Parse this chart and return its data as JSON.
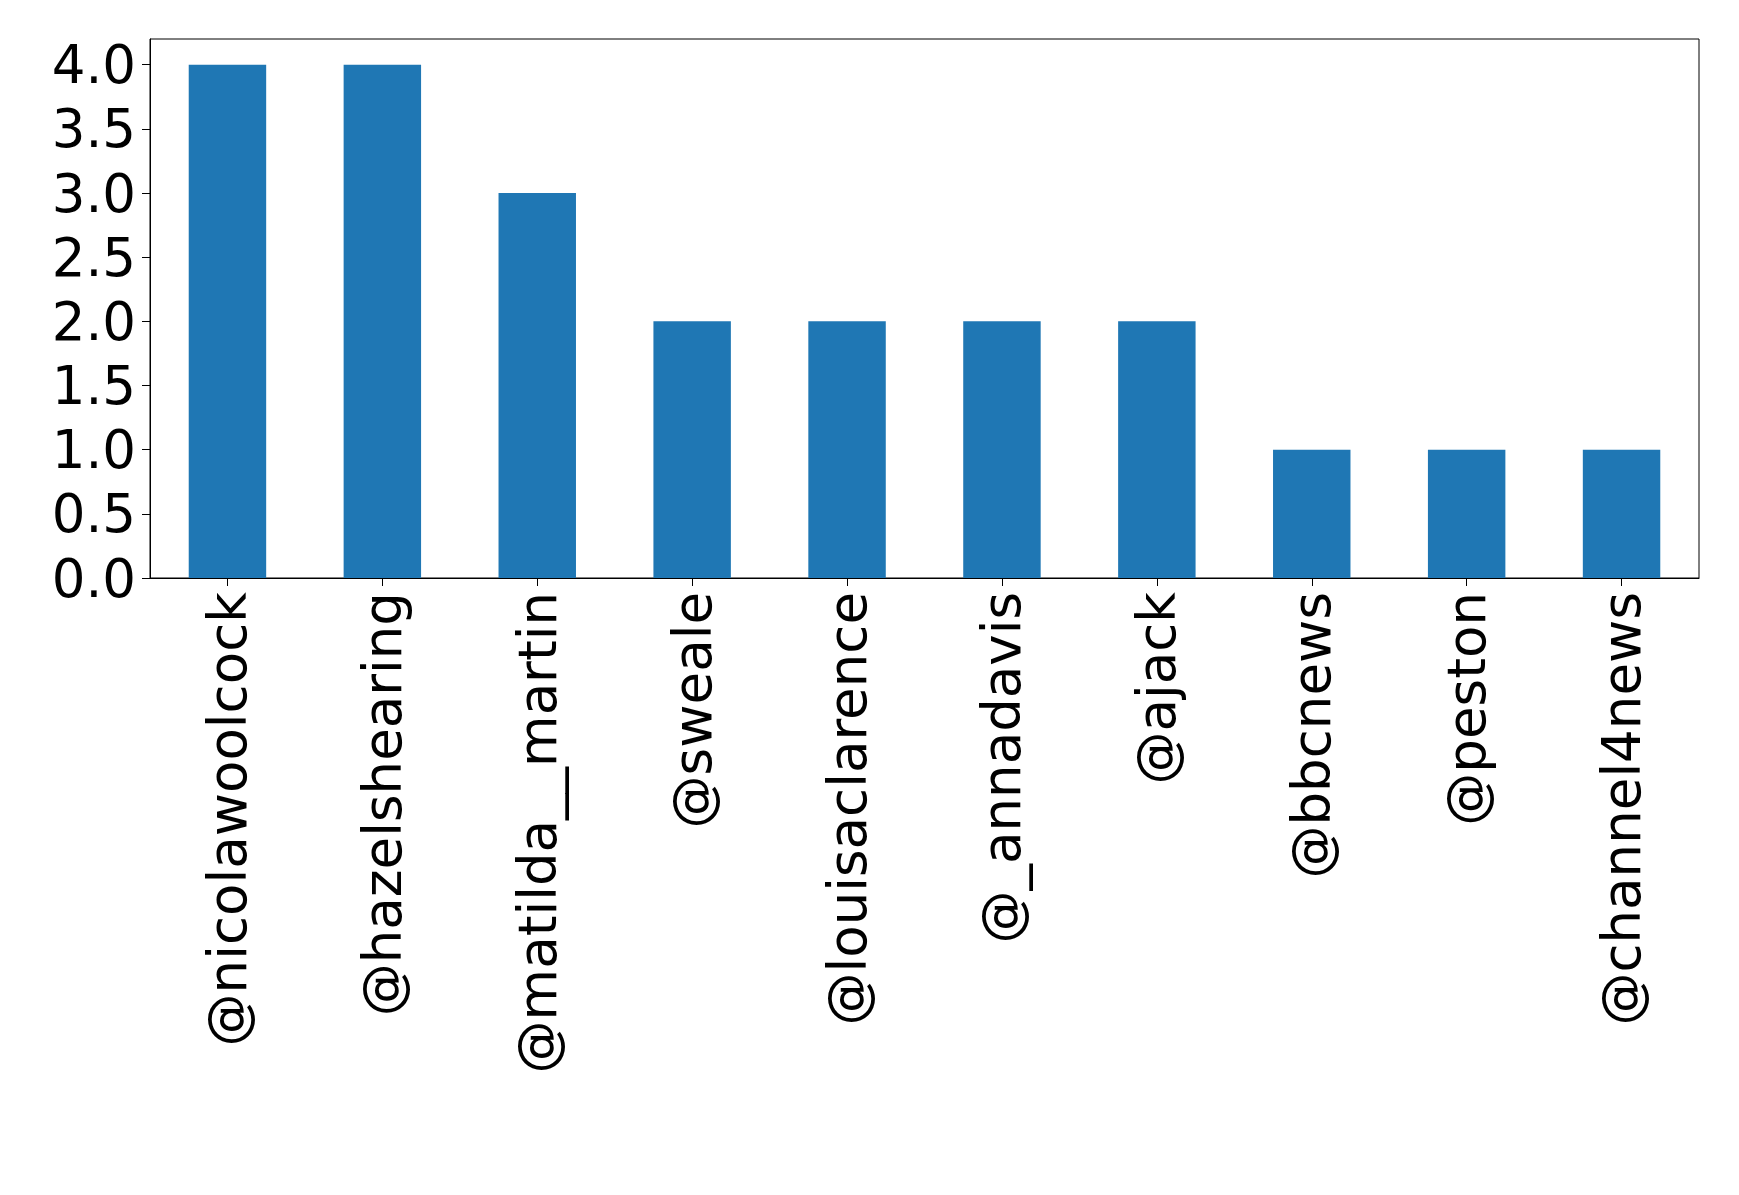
{
  "chart_data": {
    "type": "bar",
    "categories": [
      "@nicolawoolcock",
      "@hazelshearing",
      "@matilda__martin",
      "@sweale",
      "@louisaclarence",
      "@_annadavis",
      "@ajack",
      "@bbcnews",
      "@peston",
      "@channel4news"
    ],
    "values": [
      4,
      4,
      3,
      2,
      2,
      2,
      2,
      1,
      1,
      1
    ],
    "color": "#1f77b4",
    "ylim": [
      0,
      4.2
    ],
    "yticks": [
      {
        "value": 0,
        "label": "0.0"
      },
      {
        "value": 0.5,
        "label": "0.5"
      },
      {
        "value": 1,
        "label": "1.0"
      },
      {
        "value": 1.5,
        "label": "1.5"
      },
      {
        "value": 2,
        "label": "2.0"
      },
      {
        "value": 2.5,
        "label": "2.5"
      },
      {
        "value": 3,
        "label": "3.0"
      },
      {
        "value": 3.5,
        "label": "3.5"
      },
      {
        "value": 4,
        "label": "4.0"
      }
    ],
    "grid": false
  }
}
